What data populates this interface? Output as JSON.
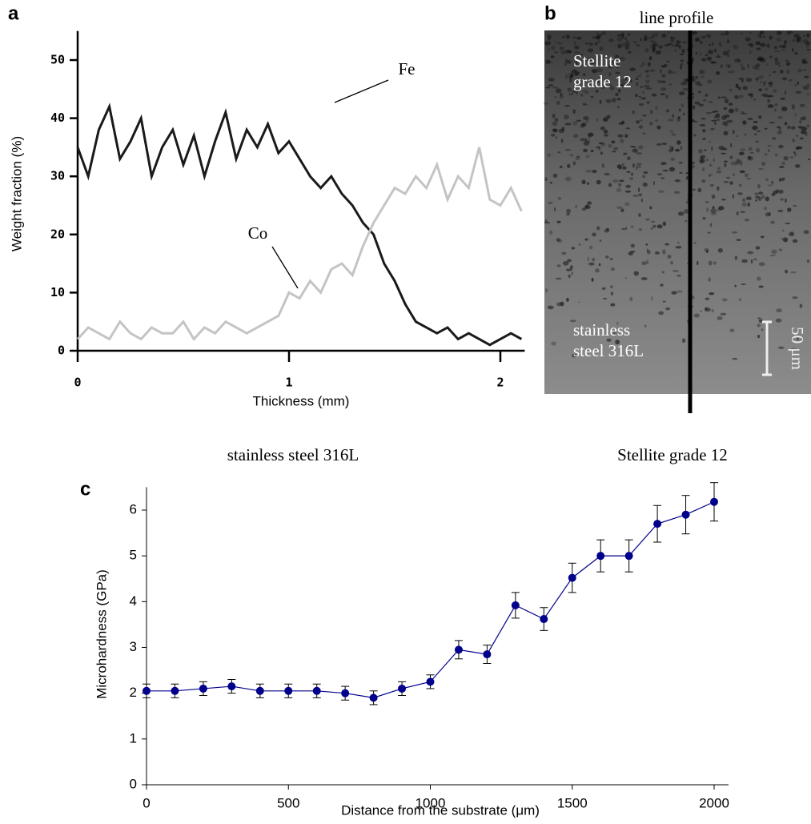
{
  "chart_data": [
    {
      "type": "line",
      "label": "a",
      "xlabel": "Thickness (mm)",
      "ylabel": "Weight fraction (%)",
      "x": [
        0,
        0.05,
        0.1,
        0.15,
        0.2,
        0.25,
        0.3,
        0.35,
        0.4,
        0.45,
        0.5,
        0.55,
        0.6,
        0.65,
        0.7,
        0.75,
        0.8,
        0.85,
        0.9,
        0.95,
        1.0,
        1.05,
        1.1,
        1.15,
        1.2,
        1.25,
        1.3,
        1.35,
        1.4,
        1.45,
        1.5,
        1.55,
        1.6,
        1.65,
        1.7,
        1.75,
        1.8,
        1.85,
        1.9,
        1.95,
        2.0,
        2.05,
        2.1
      ],
      "series": [
        {
          "name": "Fe",
          "color": "#1a1a1a",
          "values": [
            35,
            30,
            38,
            42,
            33,
            36,
            40,
            30,
            35,
            38,
            32,
            37,
            30,
            36,
            41,
            33,
            38,
            35,
            39,
            34,
            36,
            33,
            30,
            28,
            30,
            27,
            25,
            22,
            20,
            15,
            12,
            8,
            5,
            4,
            3,
            4,
            2,
            3,
            2,
            1,
            2,
            3,
            2
          ]
        },
        {
          "name": "Co",
          "color": "#c4c4c4",
          "values": [
            2,
            4,
            3,
            2,
            5,
            3,
            2,
            4,
            3,
            3,
            5,
            2,
            4,
            3,
            5,
            4,
            3,
            4,
            5,
            6,
            10,
            9,
            12,
            10,
            14,
            15,
            13,
            18,
            22,
            25,
            28,
            27,
            30,
            28,
            32,
            26,
            30,
            28,
            35,
            26,
            25,
            28,
            24
          ]
        }
      ],
      "xlim": [
        0,
        2.1
      ],
      "ylim": [
        0,
        55
      ],
      "xticks": [
        0,
        1,
        2
      ],
      "yticks": [
        0,
        10,
        20,
        30,
        40,
        50
      ]
    },
    {
      "type": "line",
      "label": "c",
      "annotations": [
        "stainless steel 316L",
        "Stellite grade 12"
      ],
      "xlabel": "Distance from the substrate  (μm)",
      "ylabel": "Microhardness (GPa)",
      "x": [
        0,
        100,
        200,
        300,
        400,
        500,
        600,
        700,
        800,
        900,
        1000,
        1100,
        1200,
        1300,
        1400,
        1500,
        1600,
        1700,
        1800,
        1900,
        2000
      ],
      "series": [
        {
          "color": "#00008b",
          "values": [
            2.05,
            2.05,
            2.1,
            2.15,
            2.05,
            2.05,
            2.05,
            2.0,
            1.9,
            2.1,
            2.25,
            2.95,
            2.85,
            3.92,
            3.62,
            4.52,
            5.0,
            5.0,
            5.7,
            5.9,
            6.18
          ],
          "errors": [
            0.15,
            0.15,
            0.15,
            0.15,
            0.15,
            0.15,
            0.15,
            0.15,
            0.15,
            0.15,
            0.15,
            0.2,
            0.2,
            0.28,
            0.25,
            0.32,
            0.35,
            0.35,
            0.4,
            0.42,
            0.42
          ]
        }
      ],
      "xlim": [
        0,
        2000
      ],
      "ylim": [
        0,
        6.5
      ],
      "xticks": [
        0,
        500,
        1000,
        1500,
        2000
      ],
      "yticks": [
        0,
        1,
        2,
        3,
        4,
        5,
        6
      ]
    }
  ],
  "micrograph": {
    "label": "b",
    "title": "line profile",
    "upper_label": [
      "Stellite",
      "grade 12"
    ],
    "lower_label": [
      "stainless",
      "steel 316L"
    ],
    "scale_bar": "50 μm"
  }
}
